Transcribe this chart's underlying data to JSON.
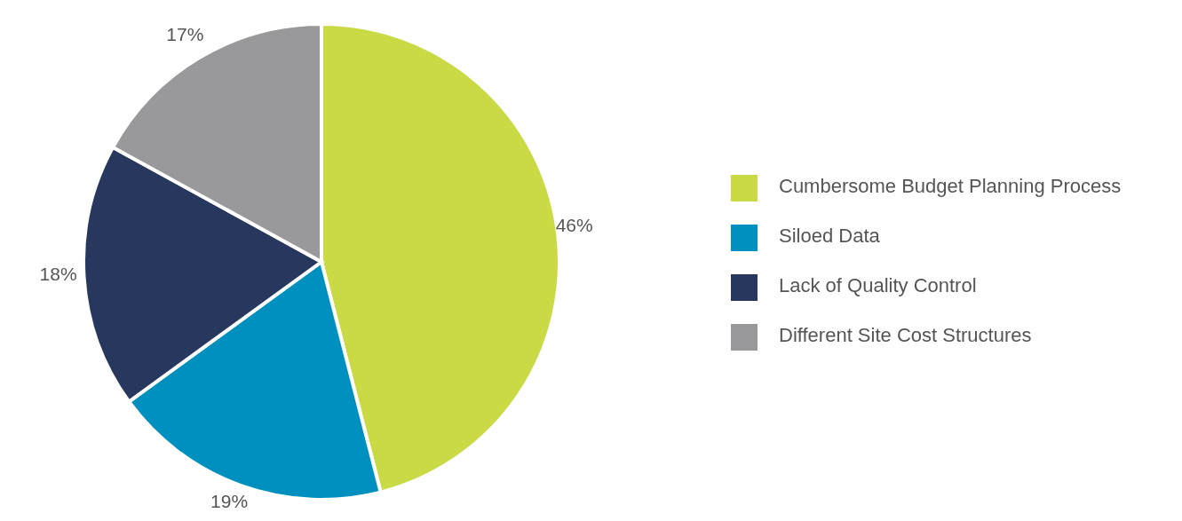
{
  "chart_data": {
    "type": "pie",
    "categories": [
      "Cumbersome Budget Planning Process",
      "Siloed Data",
      "Lack of Quality Control",
      "Different Site Cost Structures"
    ],
    "values": [
      46,
      19,
      18,
      17
    ],
    "colors": [
      "#c9da45",
      "#0090bf",
      "#28375e",
      "#99999b"
    ],
    "value_labels": [
      "46%",
      "19%",
      "18%",
      "17%"
    ],
    "legend": "right"
  }
}
